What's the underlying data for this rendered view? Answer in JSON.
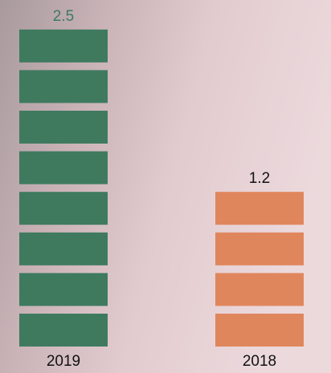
{
  "chart_data": {
    "type": "pictograph",
    "categories": [
      "2019",
      "2018"
    ],
    "values": [
      2.5,
      1.2
    ],
    "colors": [
      "#3f7a5f",
      "#e0865d"
    ],
    "value_label_colors": [
      "#3f7a5f",
      "#111111"
    ]
  }
}
